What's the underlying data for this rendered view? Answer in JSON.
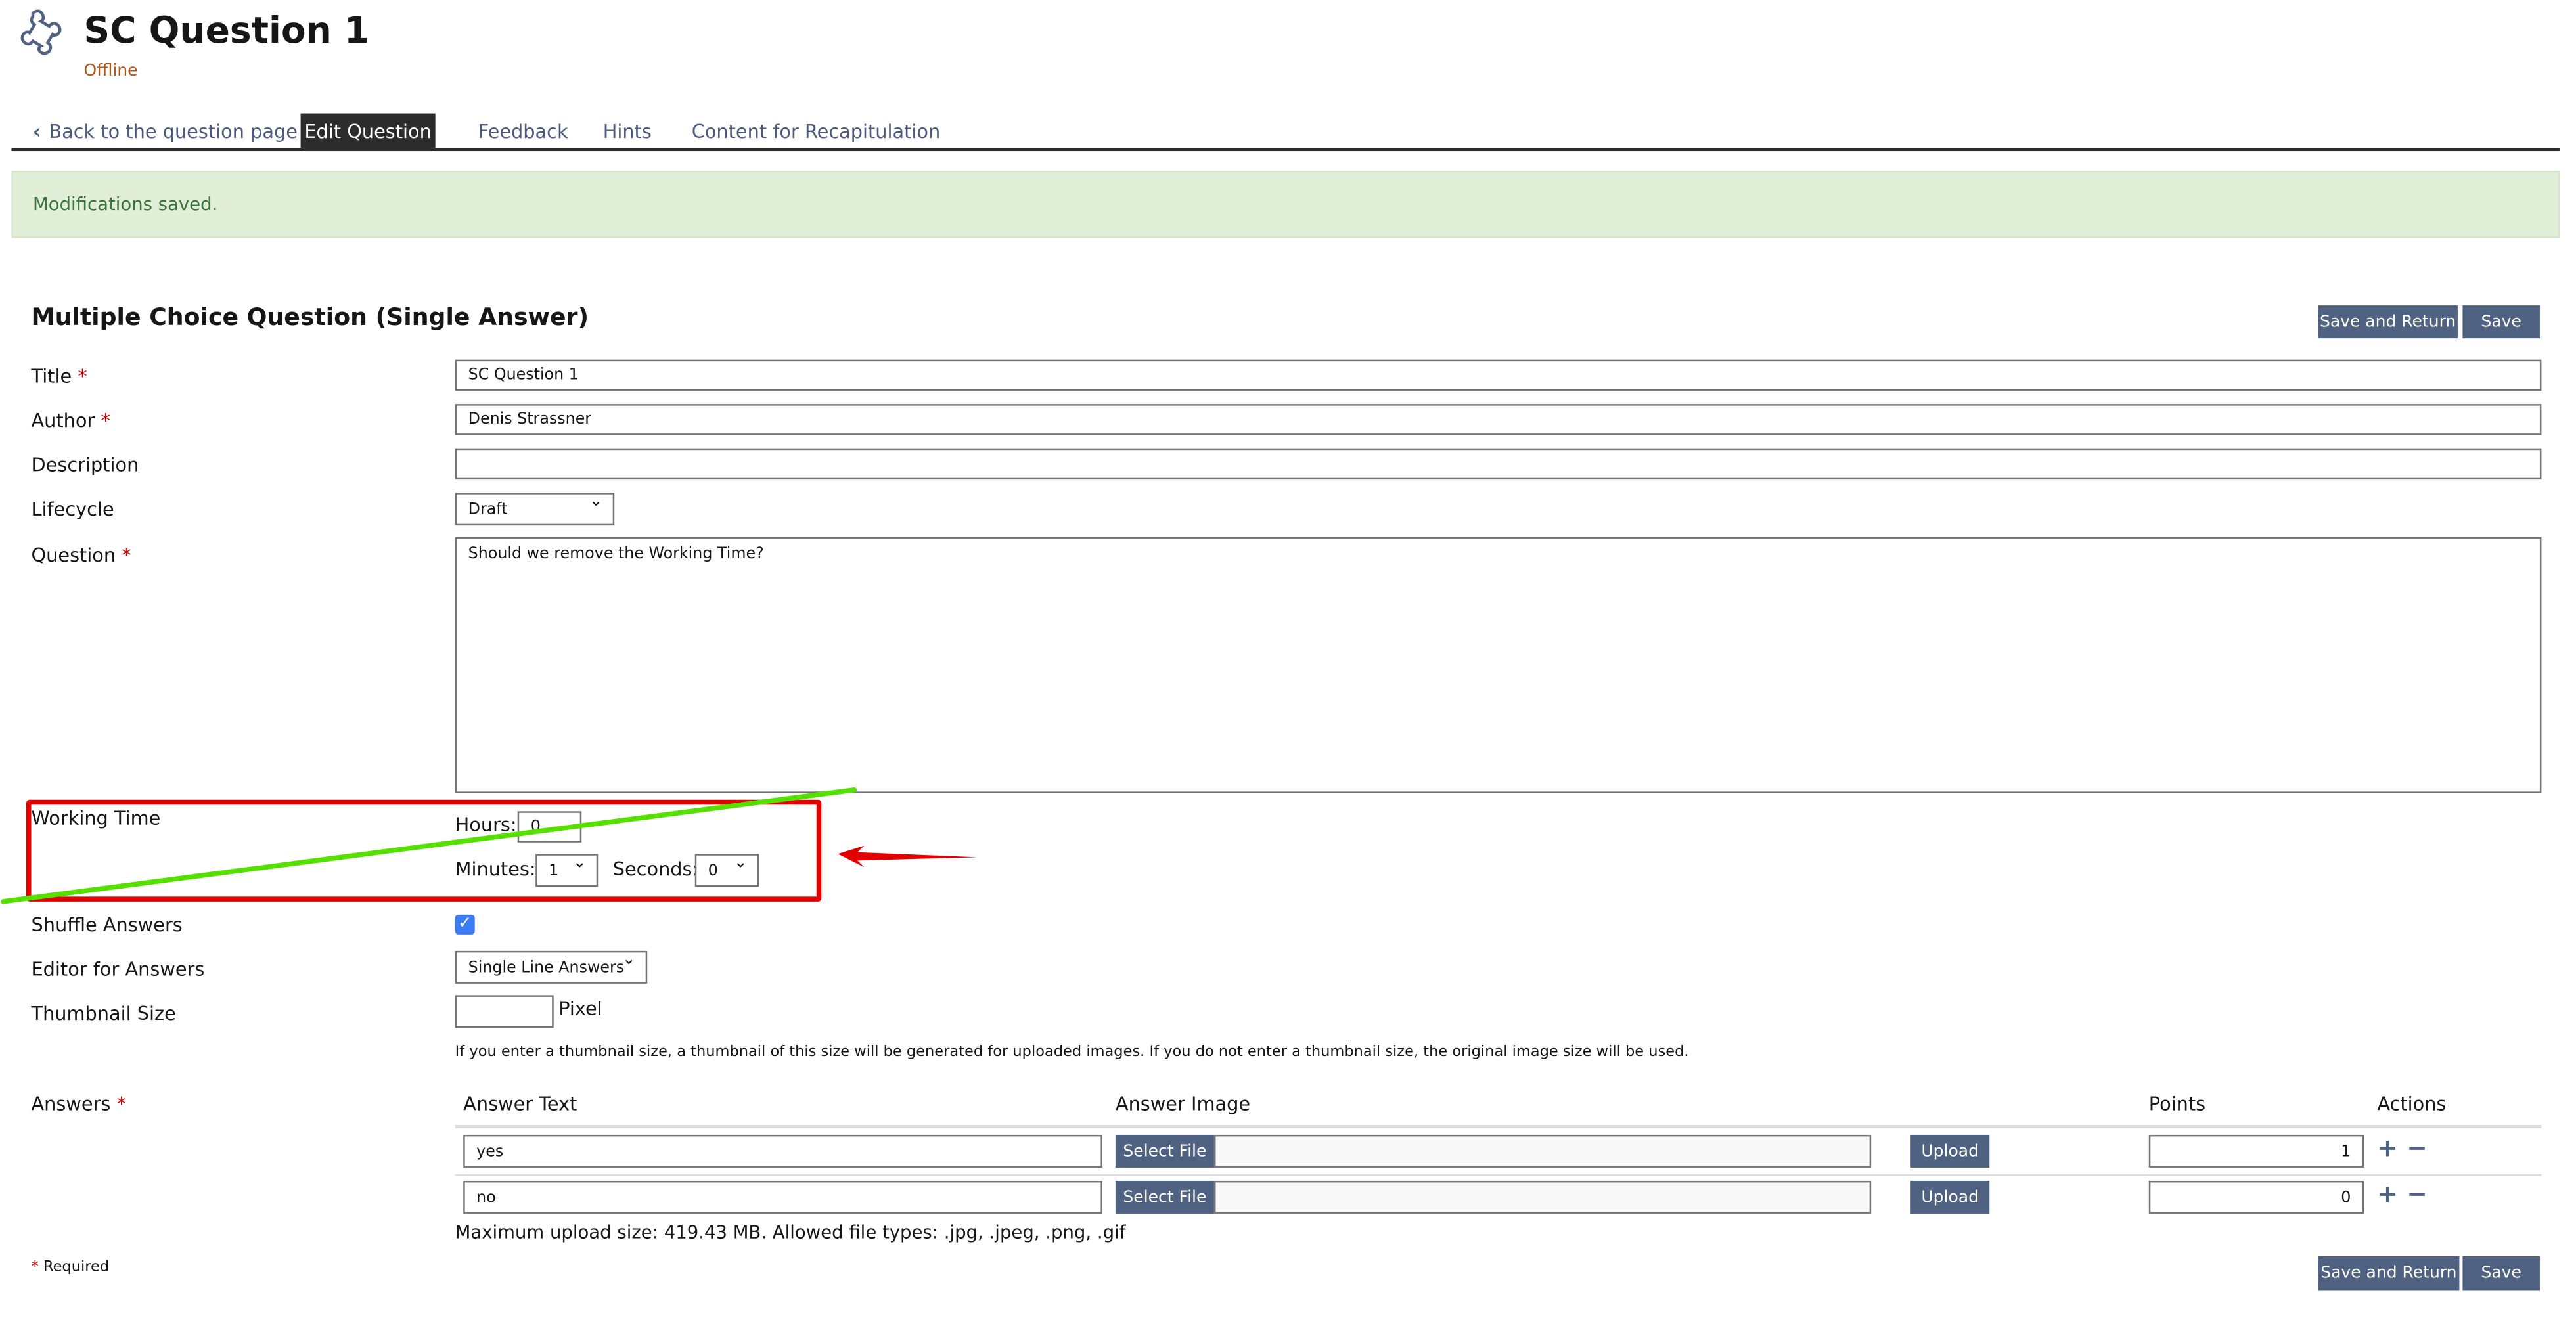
{
  "header": {
    "title": "SC Question 1",
    "status": "Offline",
    "icon": "puzzle-icon"
  },
  "tabs": [
    {
      "label": "Back to the question page",
      "icon": "chevron-left-icon"
    },
    {
      "label": "Edit Question",
      "active": true
    },
    {
      "label": "Feedback"
    },
    {
      "label": "Hints"
    },
    {
      "label": "Content for Recapitulation"
    }
  ],
  "message": "Modifications saved.",
  "form": {
    "heading": "Multiple Choice Question (Single Answer)",
    "save_return": "Save and Return",
    "save": "Save",
    "required_mark": "*",
    "title_label": "Title",
    "title_value": "SC Question 1",
    "author_label": "Author",
    "author_value": "Denis Strassner",
    "description_label": "Description",
    "description_value": "",
    "lifecycle_label": "Lifecycle",
    "lifecycle_value": "Draft",
    "question_label": "Question",
    "question_value": "Should we remove the Working Time?",
    "working_time_label": "Working Time",
    "hours_label": "Hours:",
    "hours_value": "0",
    "minutes_label": "Minutes:",
    "minutes_value": "1",
    "seconds_label": "Seconds:",
    "seconds_value": "0",
    "shuffle_label": "Shuffle Answers",
    "shuffle_checked": true,
    "editor_label": "Editor for Answers",
    "editor_value": "Single Line Answers",
    "thumb_label": "Thumbnail Size",
    "thumb_value": "",
    "thumb_unit": "Pixel",
    "thumb_help": "If you enter a thumbnail size, a thumbnail of this size will be generated for uploaded images. If you do not enter a thumbnail size, the original image size will be used.",
    "answers_label": "Answers",
    "columns": [
      "Answer Text",
      "Answer Image",
      "Points",
      "Actions"
    ],
    "answers": [
      {
        "text": "yes",
        "select_file": "Select File",
        "upload": "Upload",
        "points": "1"
      },
      {
        "text": "no",
        "select_file": "Select File",
        "upload": "Upload",
        "points": "0"
      }
    ],
    "upload_info": "Maximum upload size: 419.43 MB. Allowed file types: .jpg, .jpeg, .png, .gif",
    "required_note": "Required"
  },
  "annotations": {
    "box_color": "#e30000",
    "strike_color": "#55e000",
    "arrow_color": "#e30000"
  },
  "colors": {
    "accent": "#4f6282",
    "success_bg": "#e1eed8",
    "success_text": "#3c763d",
    "status": "#b3561c"
  }
}
